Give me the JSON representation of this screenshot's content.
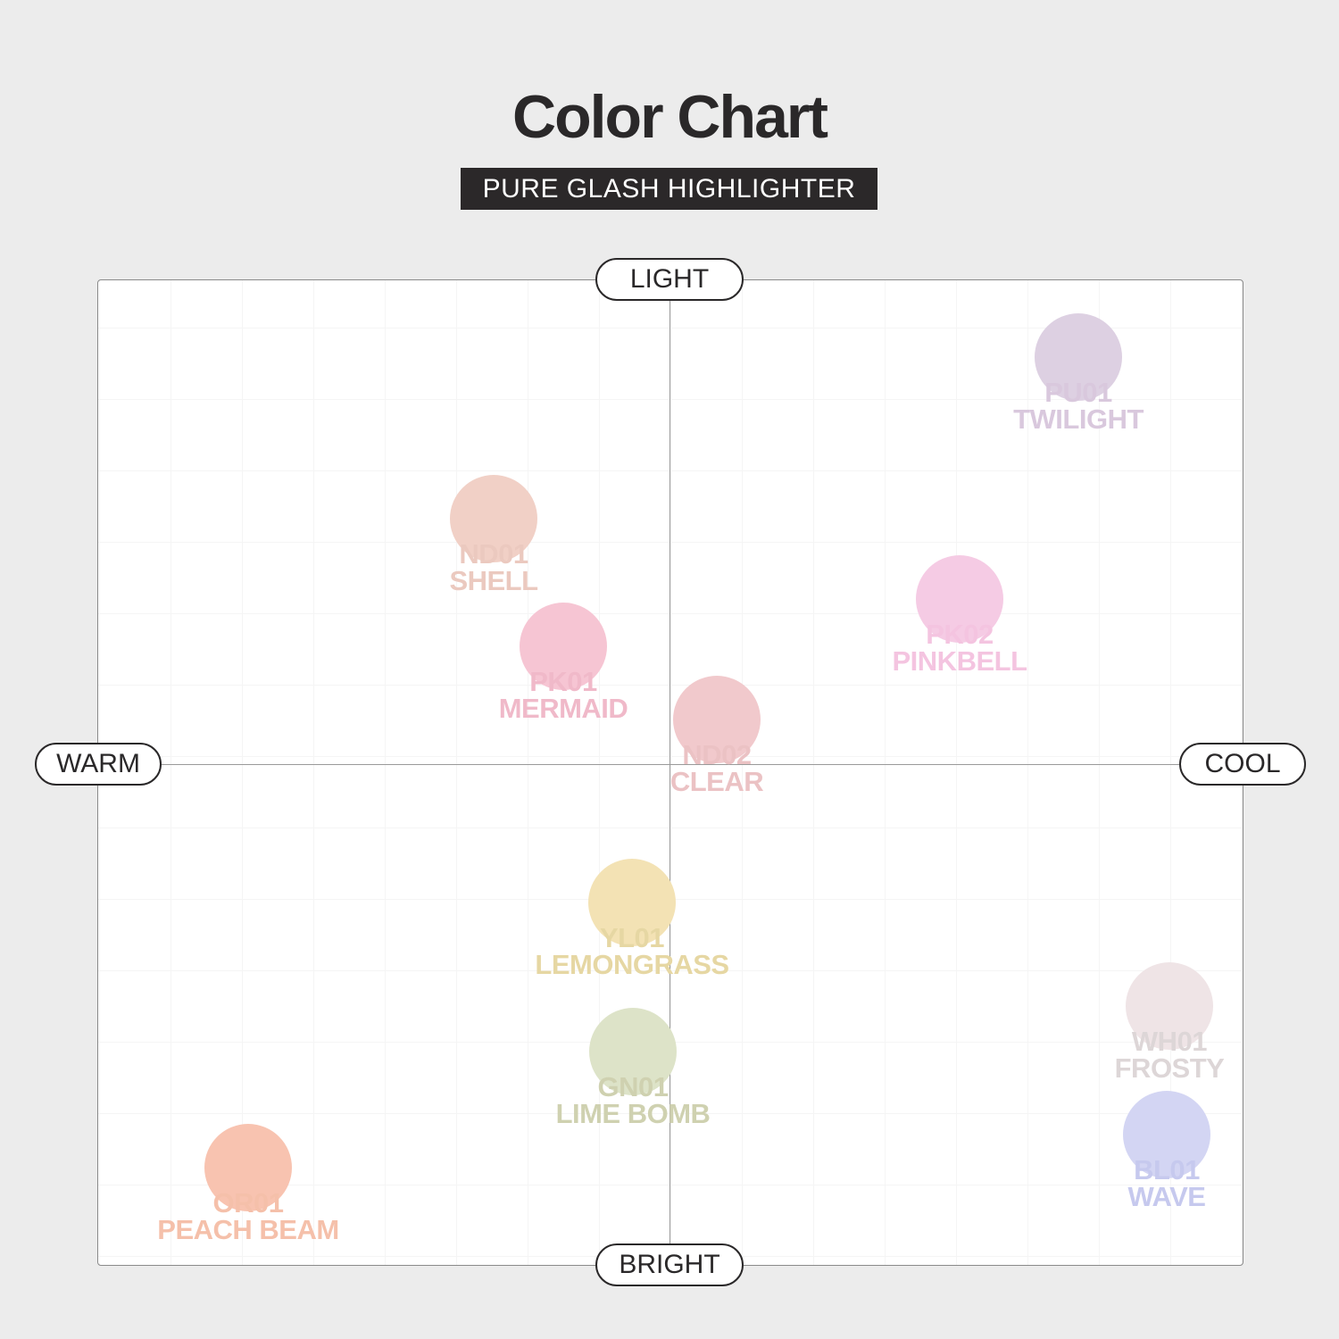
{
  "header": {
    "title": "Color Chart",
    "subtitle": "PURE GLASH HIGHLIGHTER"
  },
  "axes": {
    "top": "LIGHT",
    "bottom": "BRIGHT",
    "left": "WARM",
    "right": "COOL"
  },
  "swatches": [
    {
      "code": "PU01",
      "name": "TWILIGHT",
      "color": "#ddd0e2",
      "text_color": "#d9c8dd"
    },
    {
      "code": "ND01",
      "name": "SHELL",
      "color": "#f1d0c6",
      "text_color": "#ebc9bf"
    },
    {
      "code": "PK01",
      "name": "MERMAID",
      "color": "#f6c5d3",
      "text_color": "#f0b9c9"
    },
    {
      "code": "ND02",
      "name": "CLEAR",
      "color": "#f1c9cc",
      "text_color": "#ebc2c4"
    },
    {
      "code": "PK02",
      "name": "PINKBELL",
      "color": "#f5cbe4",
      "text_color": "#f4c4e0"
    },
    {
      "code": "YL01",
      "name": "LEMONGRASS",
      "color": "#f3e2b4",
      "text_color": "#e6d7a3"
    },
    {
      "code": "GN01",
      "name": "LIME BOMB",
      "color": "#dde3c8",
      "text_color": "#cfd1b0"
    },
    {
      "code": "WH01",
      "name": "FROSTY",
      "color": "#efe4e6",
      "text_color": "#ddd6d7"
    },
    {
      "code": "BL01",
      "name": "WAVE",
      "color": "#d3d5f3",
      "text_color": "#c6c9ee"
    },
    {
      "code": "OR01",
      "name": "PEACH BEAM",
      "color": "#f8c3b0",
      "text_color": "#f5c0aa"
    }
  ]
}
